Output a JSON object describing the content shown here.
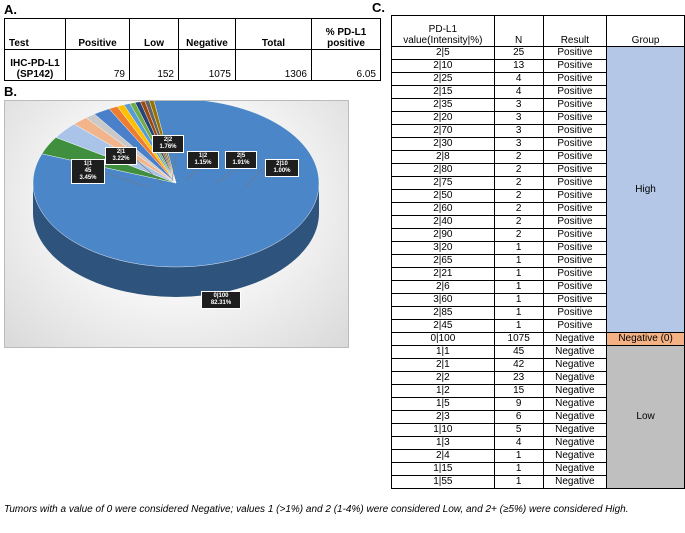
{
  "panel_a": {
    "label": "A.",
    "headers": [
      "Test",
      "Positive",
      "Low",
      "Negative",
      "Total",
      "% PD-L1 positive"
    ],
    "test_name_line1": "IHC-PD-L1",
    "test_name_line2": "(SP142)",
    "positive": "79",
    "low": "152",
    "negative": "1075",
    "total": "1306",
    "pct_positive": "6.05"
  },
  "panel_b": {
    "label": "B.",
    "chart_data": {
      "type": "pie",
      "slices": [
        {
          "label": "0|100",
          "percent": 82.31,
          "color": "#4a86c8"
        },
        {
          "label": "1|1",
          "count": 45,
          "percent": 3.45,
          "color": "#3f8f3f"
        },
        {
          "label": "2|1",
          "percent": 3.22,
          "color": "#a9c4e8"
        },
        {
          "label": "2|2",
          "percent": 1.76,
          "color": "#f2b48a"
        },
        {
          "label": "1|2",
          "percent": 1.15,
          "color": "#c9c9c9"
        },
        {
          "label": "2|5",
          "percent": 1.91,
          "color": "#4a7fc9"
        },
        {
          "label": "2|10",
          "percent": 1.0,
          "color": "#ed7d31"
        },
        {
          "label": "",
          "percent": 0.8,
          "color": "#ffc000"
        },
        {
          "label": "",
          "percent": 0.7,
          "color": "#5b9bd5"
        },
        {
          "label": "",
          "percent": 0.6,
          "color": "#70ad47"
        },
        {
          "label": "",
          "percent": 0.6,
          "color": "#264478"
        },
        {
          "label": "",
          "percent": 0.5,
          "color": "#9e480e"
        },
        {
          "label": "",
          "percent": 0.5,
          "color": "#636363"
        },
        {
          "label": "",
          "percent": 0.5,
          "color": "#997300"
        }
      ],
      "label_lines": {
        "s00": [
          "0|100",
          "82.31%"
        ],
        "s01": [
          "1|1",
          "45",
          "3.45%"
        ],
        "s02": [
          "2|1",
          "3.22%"
        ],
        "s03": [
          "2|2",
          "1.76%"
        ],
        "s04": [
          "1|2",
          "1.15%"
        ],
        "s05": [
          "2|5",
          "1.91%"
        ],
        "s06": [
          "2|10",
          "1.00%"
        ]
      }
    }
  },
  "panel_c": {
    "label": "C.",
    "headers": [
      "PD-L1 value(Intensity|%)",
      "N",
      "Result",
      "Group"
    ],
    "groups": {
      "high": "High",
      "negative": "Negative (0)",
      "low": "Low"
    },
    "rows": [
      [
        "2|5",
        "25",
        "Positive"
      ],
      [
        "2|10",
        "13",
        "Positive"
      ],
      [
        "2|25",
        "4",
        "Positive"
      ],
      [
        "2|15",
        "4",
        "Positive"
      ],
      [
        "2|35",
        "3",
        "Positive"
      ],
      [
        "2|20",
        "3",
        "Positive"
      ],
      [
        "2|70",
        "3",
        "Positive"
      ],
      [
        "2|30",
        "3",
        "Positive"
      ],
      [
        "2|8",
        "2",
        "Positive"
      ],
      [
        "2|80",
        "2",
        "Positive"
      ],
      [
        "2|75",
        "2",
        "Positive"
      ],
      [
        "2|50",
        "2",
        "Positive"
      ],
      [
        "2|60",
        "2",
        "Positive"
      ],
      [
        "2|40",
        "2",
        "Positive"
      ],
      [
        "2|90",
        "2",
        "Positive"
      ],
      [
        "3|20",
        "1",
        "Positive"
      ],
      [
        "2|65",
        "1",
        "Positive"
      ],
      [
        "2|21",
        "1",
        "Positive"
      ],
      [
        "2|6",
        "1",
        "Positive"
      ],
      [
        "3|60",
        "1",
        "Positive"
      ],
      [
        "2|85",
        "1",
        "Positive"
      ],
      [
        "2|45",
        "1",
        "Positive"
      ],
      [
        "0|100",
        "1075",
        "Negative"
      ],
      [
        "1|1",
        "45",
        "Negative"
      ],
      [
        "2|1",
        "42",
        "Negative"
      ],
      [
        "2|2",
        "23",
        "Negative"
      ],
      [
        "1|2",
        "15",
        "Negative"
      ],
      [
        "1|5",
        "9",
        "Negative"
      ],
      [
        "2|3",
        "6",
        "Negative"
      ],
      [
        "1|10",
        "5",
        "Negative"
      ],
      [
        "1|3",
        "4",
        "Negative"
      ],
      [
        "2|4",
        "1",
        "Negative"
      ],
      [
        "1|15",
        "1",
        "Negative"
      ],
      [
        "1|55",
        "1",
        "Negative"
      ]
    ]
  },
  "footnote": "Tumors with a value of 0 were considered Negative; values 1 (>1%) and 2 (1-4%) were considered Low, and 2+ (≥5%) were considered High."
}
